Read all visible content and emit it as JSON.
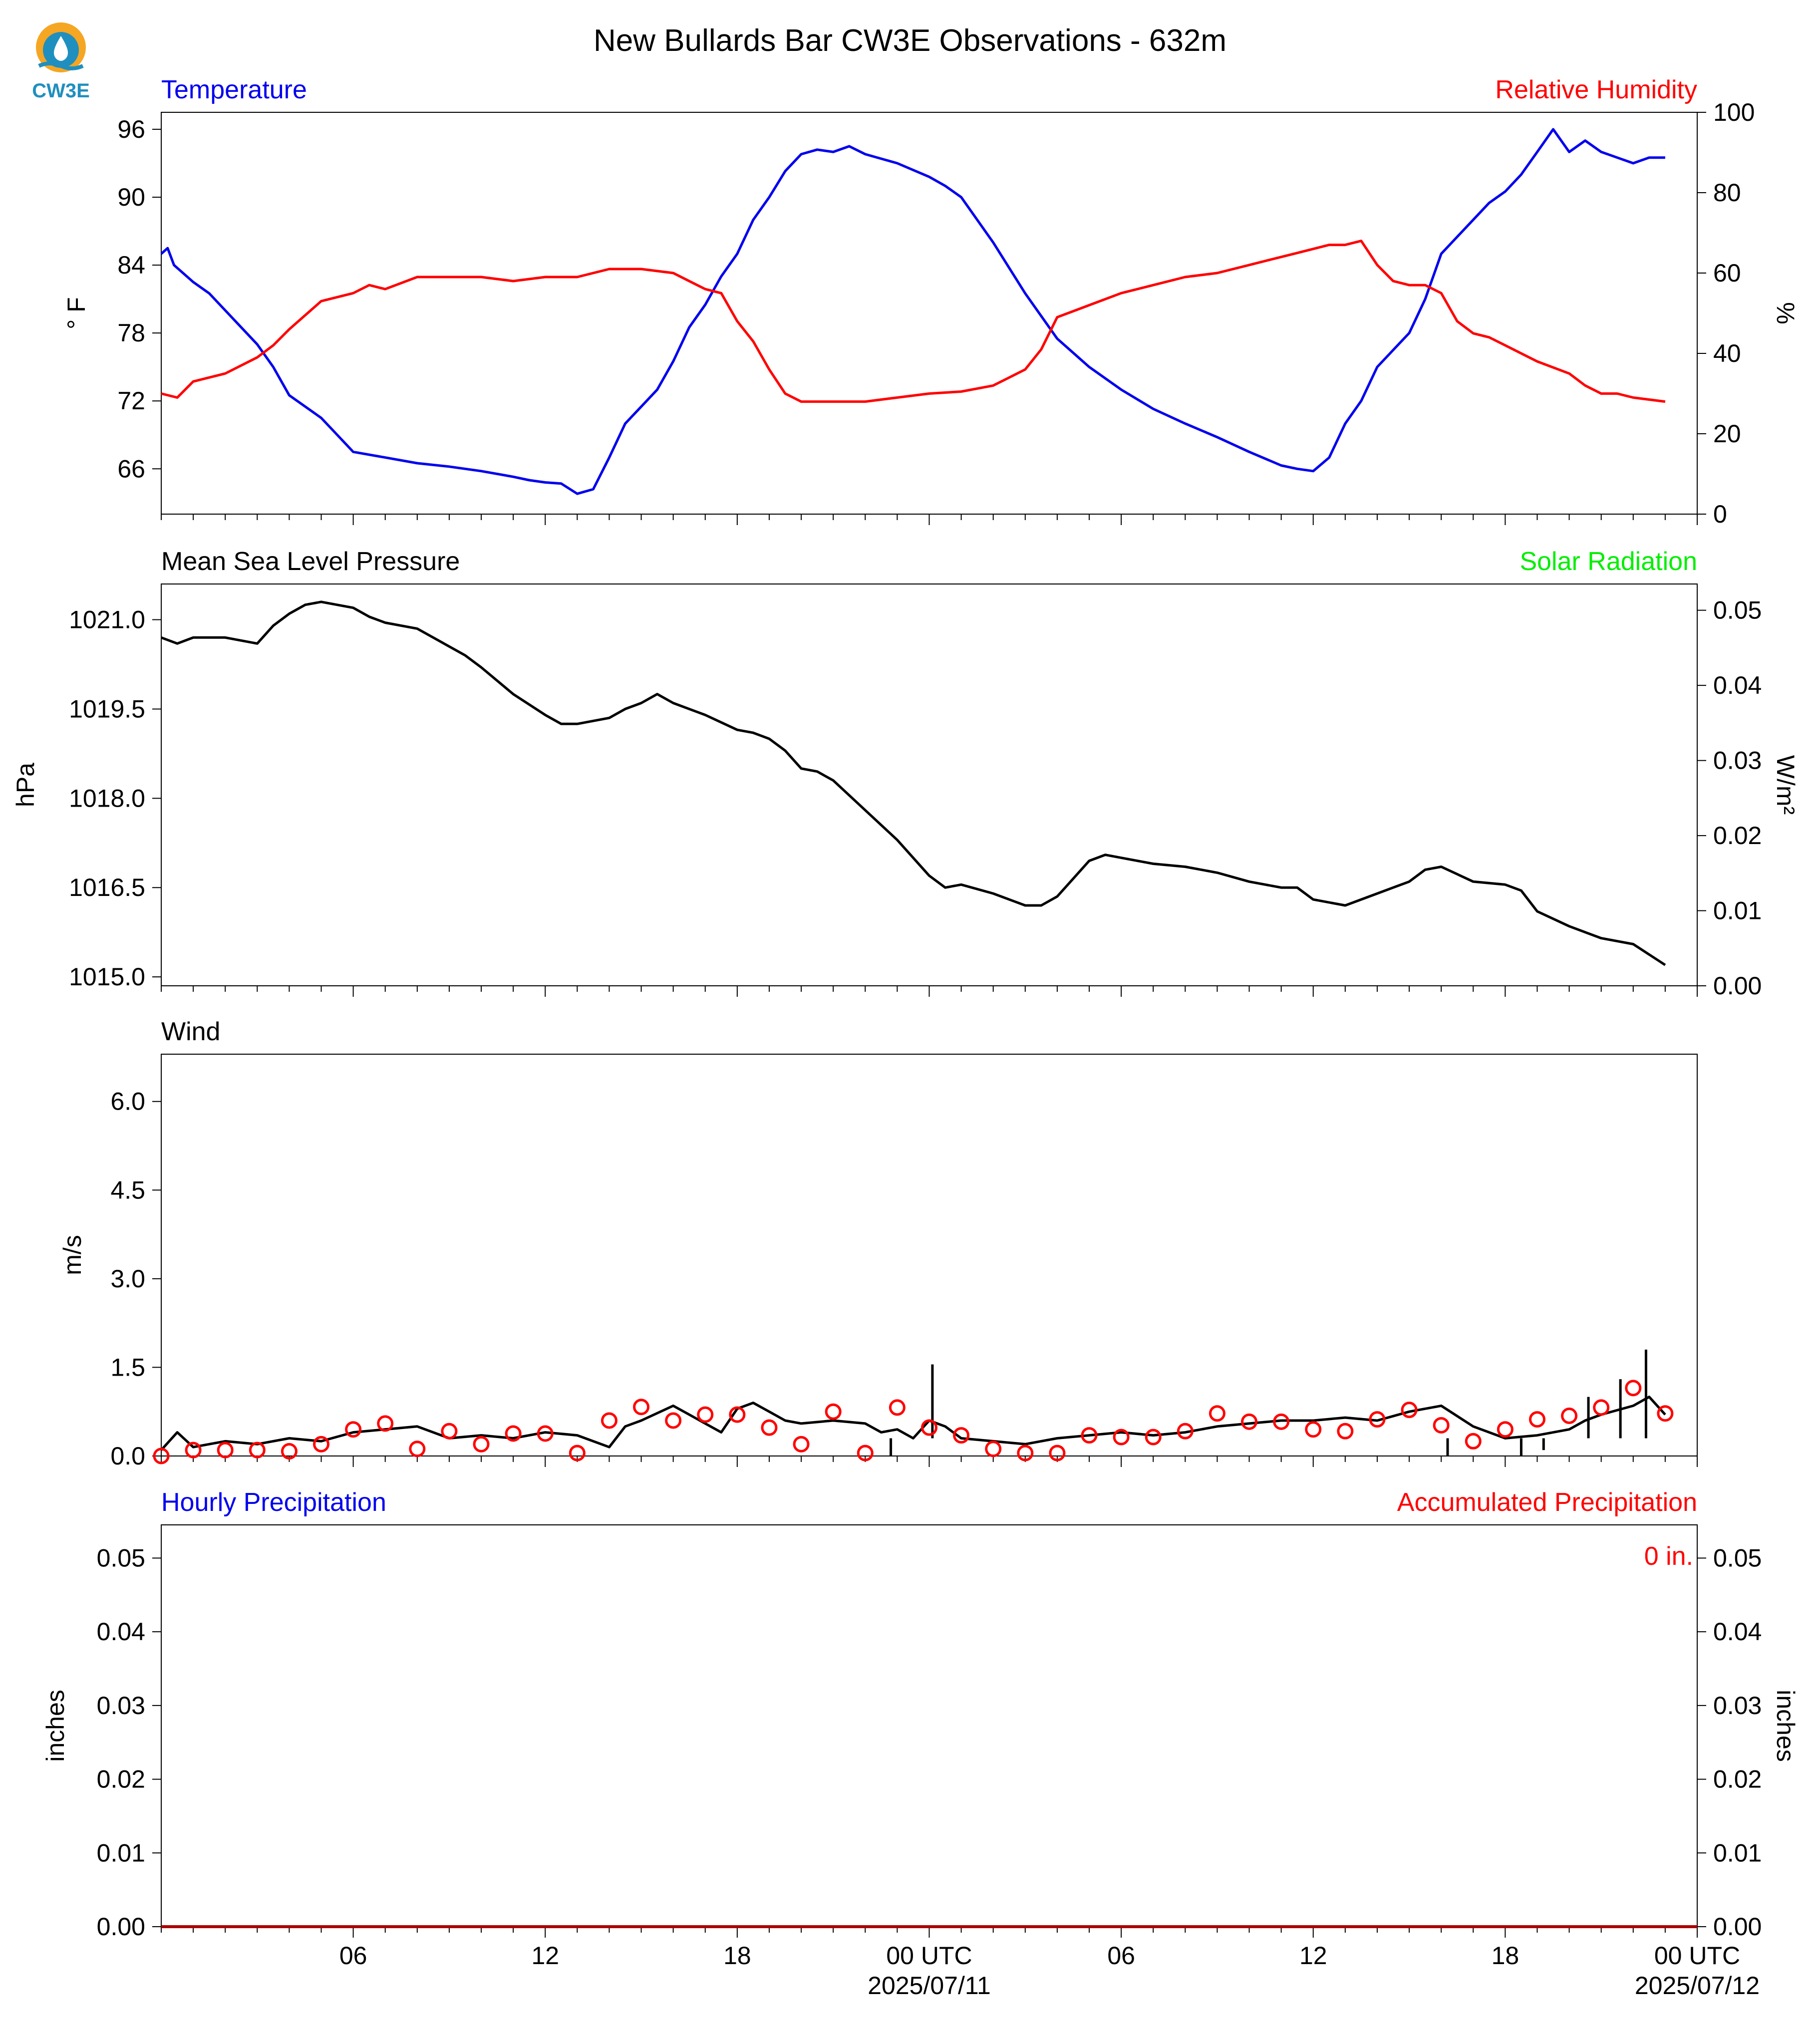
{
  "figure": {
    "title": "New Bullards Bar CW3E Observations - 632m",
    "logo_text": "CW3E",
    "x_tick_labels": [
      "06",
      "12",
      "18",
      "00 UTC",
      "06",
      "12",
      "18",
      "00 UTC"
    ],
    "x_date_labels": [
      "2025/07/11",
      "2025/07/12"
    ],
    "accumulated_label": "0 in."
  },
  "colors": {
    "temperature": "#0000ee",
    "humidity": "#ff0000",
    "solar": "#00ee00",
    "black": "#000000",
    "logo_orange": "#f5a623",
    "logo_blue": "#1f8fbf"
  },
  "chart_data": [
    {
      "type": "line",
      "panel": "temperature_humidity",
      "title_left": "Temperature",
      "title_right": "Relative Humidity",
      "ylabel_left": "° F",
      "ylabel_right": "%",
      "x_unit": "hours from 2025/07/10 00 UTC",
      "xlim": [
        0,
        48
      ],
      "ylim_left": [
        62,
        97.5
      ],
      "ylim_right": [
        0,
        100
      ],
      "yticks_left": [
        66,
        72,
        78,
        84,
        90,
        96
      ],
      "yticks_right": [
        0,
        20,
        40,
        60,
        80,
        100
      ],
      "series": [
        {
          "name": "Temperature",
          "axis": "left",
          "color": "#0000ee",
          "x": [
            0,
            0.2,
            0.4,
            1,
            1.5,
            2,
            3,
            3.5,
            4,
            5,
            5.5,
            6,
            7,
            8,
            9,
            10,
            11,
            11.5,
            12,
            12.5,
            13,
            13.5,
            14,
            14.5,
            15,
            15.5,
            16,
            16.5,
            17,
            17.5,
            18,
            18.5,
            19,
            19.5,
            20,
            20.5,
            21,
            21.5,
            22,
            23,
            24,
            24.5,
            25,
            26,
            27,
            28,
            29,
            30,
            31,
            32,
            33,
            34,
            35,
            35.5,
            36,
            36.5,
            37,
            37.5,
            38,
            38.5,
            39,
            39.5,
            40,
            40.5,
            41,
            41.5,
            42,
            42.5,
            43,
            43.5,
            44,
            44.5,
            45,
            45.5,
            46,
            46.5,
            47
          ],
          "values": [
            85,
            85.5,
            84,
            82.5,
            81.5,
            80,
            77,
            75,
            72.5,
            70.5,
            69,
            67.5,
            67,
            66.5,
            66.2,
            65.8,
            65.3,
            65,
            64.8,
            64.7,
            63.8,
            64.2,
            67,
            70,
            71.5,
            73,
            75.5,
            78.5,
            80.5,
            83,
            85,
            88,
            90,
            92.3,
            93.8,
            94.2,
            94,
            94.5,
            93.8,
            93,
            91.8,
            91,
            90,
            86,
            81.5,
            77.5,
            75,
            73,
            71.3,
            70,
            68.8,
            67.5,
            66.3,
            66,
            65.8,
            67,
            70,
            72,
            75,
            76.5,
            78,
            81,
            85,
            86.5,
            88,
            89.5,
            90.5,
            92,
            94,
            96,
            94,
            95,
            94,
            93.5,
            93,
            93.5,
            93.5
          ]
        },
        {
          "name": "Relative Humidity",
          "axis": "right",
          "color": "#ff0000",
          "x": [
            0,
            0.5,
            1,
            2,
            3,
            3.5,
            4,
            5,
            6,
            6.5,
            7,
            8,
            9,
            10,
            11,
            12,
            13,
            13.5,
            14,
            14.5,
            15,
            16,
            16.5,
            17,
            17.5,
            18,
            18.5,
            19,
            19.5,
            20,
            21,
            22,
            23,
            24,
            25,
            26,
            26.5,
            27,
            27.5,
            28,
            29,
            30,
            31,
            32,
            33,
            34,
            35,
            35.5,
            36,
            36.5,
            37,
            37.5,
            38,
            38.5,
            39,
            39.5,
            40,
            40.5,
            41,
            41.5,
            42,
            42.5,
            43,
            44,
            44.5,
            45,
            45.5,
            46,
            47
          ],
          "values": [
            30,
            29,
            33,
            35,
            39,
            42,
            46,
            53,
            55,
            57,
            56,
            59,
            59,
            59,
            58,
            59,
            59,
            60,
            61,
            61,
            61,
            60,
            58,
            56,
            55,
            48,
            43,
            36,
            30,
            28,
            28,
            28,
            29,
            30,
            30.5,
            32,
            34,
            36,
            41,
            49,
            52,
            55,
            57,
            59,
            60,
            62,
            64,
            65,
            66,
            67,
            67,
            68,
            62,
            58,
            57,
            57,
            55,
            48,
            45,
            44,
            42,
            40,
            38,
            35,
            32,
            30,
            30,
            29,
            28
          ]
        }
      ]
    },
    {
      "type": "line",
      "panel": "pressure_solar",
      "title_left": "Mean Sea Level Pressure",
      "title_right": "Solar Radiation",
      "ylabel_left": "hPa",
      "ylabel_right": "W/m²",
      "x_unit": "hours from 2025/07/10 00 UTC",
      "xlim": [
        0,
        48
      ],
      "ylim_left": [
        1014.85,
        1021.6
      ],
      "ylim_right": [
        0,
        0.0535
      ],
      "yticks_left": [
        1015.0,
        1016.5,
        1018.0,
        1019.5,
        1021.0
      ],
      "yticks_left_labels": [
        "1015.0",
        "1016.5",
        "1018.0",
        "1019.5",
        "1021.0"
      ],
      "yticks_right": [
        0,
        0.01,
        0.02,
        0.03,
        0.04,
        0.05
      ],
      "yticks_right_labels": [
        "0.00",
        "0.01",
        "0.02",
        "0.03",
        "0.04",
        "0.05"
      ],
      "series": [
        {
          "name": "Mean Sea Level Pressure",
          "axis": "left",
          "color": "#000000",
          "x": [
            0,
            0.5,
            1,
            2,
            2.5,
            3,
            3.5,
            4,
            4.5,
            5,
            6,
            6.5,
            7,
            8,
            9,
            9.5,
            10,
            11,
            12,
            12.5,
            13,
            14,
            14.5,
            15,
            15.5,
            16,
            17,
            18,
            18.5,
            19,
            19.5,
            20,
            20.5,
            21,
            22,
            23,
            24,
            24.5,
            25,
            26,
            27,
            27.5,
            28,
            28.5,
            29,
            29.5,
            30,
            31,
            32,
            33,
            34,
            35,
            35.5,
            36,
            37,
            38,
            38.5,
            39,
            39.5,
            40,
            41,
            42,
            42.5,
            43,
            44,
            44.5,
            45,
            46,
            47
          ],
          "values": [
            1020.7,
            1020.6,
            1020.7,
            1020.7,
            1020.65,
            1020.6,
            1020.9,
            1021.1,
            1021.25,
            1021.3,
            1021.2,
            1021.05,
            1020.95,
            1020.85,
            1020.55,
            1020.4,
            1020.2,
            1019.75,
            1019.4,
            1019.25,
            1019.25,
            1019.35,
            1019.5,
            1019.6,
            1019.75,
            1019.6,
            1019.4,
            1019.15,
            1019.1,
            1019.0,
            1018.8,
            1018.5,
            1018.45,
            1018.3,
            1017.8,
            1017.3,
            1016.7,
            1016.5,
            1016.55,
            1016.4,
            1016.2,
            1016.2,
            1016.35,
            1016.65,
            1016.95,
            1017.05,
            1017.0,
            1016.9,
            1016.85,
            1016.75,
            1016.6,
            1016.5,
            1016.5,
            1016.3,
            1016.2,
            1016.4,
            1016.5,
            1016.6,
            1016.8,
            1016.85,
            1016.6,
            1016.55,
            1016.45,
            1016.1,
            1015.85,
            1015.75,
            1015.65,
            1015.55,
            1015.2
          ]
        },
        {
          "name": "Solar Radiation",
          "axis": "right",
          "color": "#00ee00",
          "x": [],
          "values": []
        }
      ]
    },
    {
      "type": "line",
      "panel": "wind",
      "title_left": "Wind",
      "ylabel_left": "m/s",
      "x_unit": "hours from 2025/07/10 00 UTC",
      "xlim": [
        0,
        48
      ],
      "ylim_left": [
        0,
        6.8
      ],
      "yticks_left": [
        0,
        1.5,
        3.0,
        4.5,
        6.0
      ],
      "yticks_left_labels": [
        "0.0",
        "1.5",
        "3.0",
        "4.5",
        "6.0"
      ],
      "series": [
        {
          "name": "Wind Speed",
          "color": "#000000",
          "x": [
            0,
            0.5,
            1,
            2,
            3,
            4,
            5,
            6,
            7,
            8,
            9,
            10,
            11,
            12,
            13,
            14,
            14.5,
            15,
            16,
            16.5,
            17,
            17.5,
            18,
            18.5,
            19,
            19.5,
            20,
            21,
            22,
            22.5,
            23,
            23.5,
            24,
            24.5,
            25,
            26,
            27,
            28,
            29,
            30,
            31,
            32,
            33,
            34,
            35,
            36,
            37,
            38,
            39,
            40,
            41,
            42,
            43,
            44,
            44.5,
            45,
            46,
            46.5,
            47
          ],
          "values": [
            0.1,
            0.4,
            0.15,
            0.25,
            0.2,
            0.3,
            0.25,
            0.4,
            0.45,
            0.5,
            0.3,
            0.35,
            0.3,
            0.4,
            0.35,
            0.15,
            0.5,
            0.6,
            0.85,
            0.7,
            0.55,
            0.4,
            0.8,
            0.9,
            0.75,
            0.6,
            0.55,
            0.6,
            0.55,
            0.4,
            0.45,
            0.3,
            0.6,
            0.5,
            0.3,
            0.25,
            0.2,
            0.3,
            0.35,
            0.4,
            0.35,
            0.4,
            0.5,
            0.55,
            0.6,
            0.6,
            0.65,
            0.6,
            0.75,
            0.85,
            0.5,
            0.3,
            0.35,
            0.45,
            0.6,
            0.7,
            0.85,
            1.0,
            0.7
          ],
          "x_gusty": [
            22.8,
            24.1,
            40.2,
            42.5,
            43.2,
            44.6,
            45.6,
            46.4,
            47.0
          ],
          "values_gusty": [
            0.0,
            1.55,
            0.0,
            0.0,
            0.1,
            1.0,
            1.3,
            1.8,
            0.3
          ]
        },
        {
          "name": "Hourly Mean",
          "color": "#ff0000",
          "marker": "circle",
          "x": [
            0,
            1,
            2,
            3,
            4,
            5,
            6,
            7,
            8,
            9,
            10,
            11,
            12,
            13,
            14,
            15,
            16,
            17,
            18,
            19,
            20,
            21,
            22,
            23,
            24,
            25,
            26,
            27,
            28,
            29,
            30,
            31,
            32,
            33,
            34,
            35,
            36,
            37,
            38,
            39,
            40,
            41,
            42,
            43,
            44,
            45,
            46,
            47
          ],
          "values": [
            0.0,
            0.1,
            0.1,
            0.1,
            0.08,
            0.2,
            0.45,
            0.55,
            0.12,
            0.42,
            0.2,
            0.38,
            0.38,
            0.05,
            0.6,
            0.83,
            0.6,
            0.7,
            0.7,
            0.48,
            0.2,
            0.75,
            0.05,
            0.82,
            0.48,
            0.35,
            0.12,
            0.05,
            0.05,
            0.35,
            0.32,
            0.32,
            0.42,
            0.72,
            0.58,
            0.58,
            0.45,
            0.42,
            0.62,
            0.78,
            0.52,
            0.25,
            0.45,
            0.62,
            0.68,
            0.82,
            1.15,
            0.72
          ]
        }
      ]
    },
    {
      "type": "line",
      "panel": "precipitation",
      "title_left": "Hourly Precipitation",
      "title_right": "Accumulated Precipitation",
      "ylabel_left": "inches",
      "ylabel_right": "inches",
      "x_unit": "hours from 2025/07/10 00 UTC",
      "xlim": [
        0,
        48
      ],
      "ylim_left": [
        0,
        0.0545
      ],
      "ylim_right": [
        0,
        0.0545
      ],
      "yticks_left": [
        0,
        0.01,
        0.02,
        0.03,
        0.04,
        0.05
      ],
      "yticks_left_labels": [
        "0.00",
        "0.01",
        "0.02",
        "0.03",
        "0.04",
        "0.05"
      ],
      "yticks_right": [
        0,
        0.01,
        0.02,
        0.03,
        0.04,
        0.05
      ],
      "yticks_right_labels": [
        "0.00",
        "0.01",
        "0.02",
        "0.03",
        "0.04",
        "0.05"
      ],
      "series": [
        {
          "name": "Hourly Precipitation",
          "color": "#0000ee",
          "x": [
            0,
            48
          ],
          "values": [
            0,
            0
          ]
        },
        {
          "name": "Accumulated Precipitation",
          "color": "#aa0000",
          "x": [
            0,
            48
          ],
          "values": [
            0,
            0
          ]
        }
      ]
    }
  ]
}
